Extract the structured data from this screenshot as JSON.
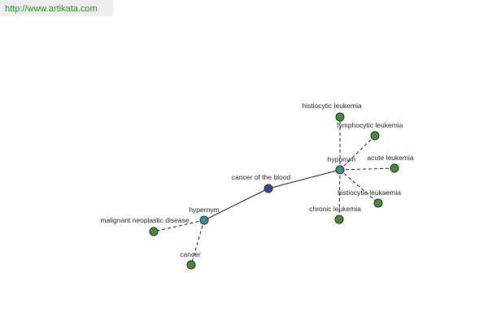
{
  "header": {
    "url": "http://www.artikata.com"
  },
  "nodes": [
    {
      "label": "cancer of the blood"
    },
    {
      "label": "hyponym"
    },
    {
      "label": "hypernym"
    },
    {
      "label": "histiocytic leukemia"
    },
    {
      "label": "lymphocytic leukemia"
    },
    {
      "label": "acute leukemia"
    },
    {
      "label": "histiocytic leukaemia"
    },
    {
      "label": "chronic leukemia"
    },
    {
      "label": "malignant neoplastic disease"
    },
    {
      "label": "cancer"
    }
  ]
}
